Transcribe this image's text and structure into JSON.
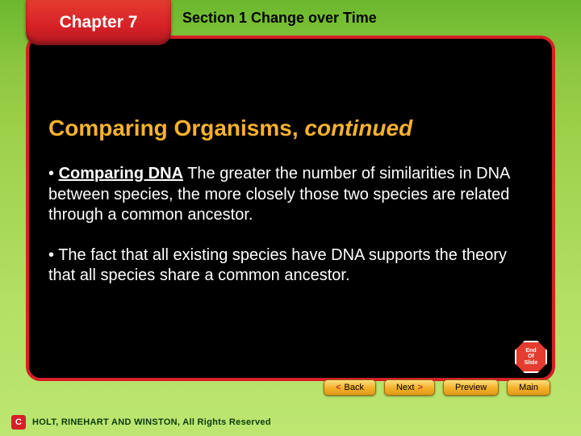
{
  "chapter": {
    "label": "Chapter 7"
  },
  "section": {
    "label": "Section 1  Change over Time"
  },
  "title": {
    "main": "Comparing Organisms,",
    "suffix": " continued"
  },
  "bullets": [
    {
      "lead": "Comparing DNA",
      "text": "  The greater the number of similarities in DNA between species, the more closely those two species are related through a common ancestor."
    },
    {
      "lead": "",
      "text": "The fact that all existing species have DNA supports the theory that all species share a common ancestor."
    }
  ],
  "end_marker": {
    "line1": "End",
    "line2": "Of",
    "line3": "Slide"
  },
  "nav": {
    "back": {
      "arrow": "<",
      "label": "Back"
    },
    "next": {
      "label": "Next",
      "arrow": ">"
    },
    "preview": {
      "label": "Preview"
    },
    "main": {
      "label": "Main"
    }
  },
  "copyright": {
    "icon": "C",
    "text": "HOLT, RINEHART AND WINSTON, All Rights Reserved"
  },
  "colors": {
    "accent_red": "#d62027",
    "accent_yellow": "#f6b22b",
    "bg_green_top": "#6bb82e",
    "bg_green_bottom": "#bce671",
    "panel_bg": "#000000"
  }
}
